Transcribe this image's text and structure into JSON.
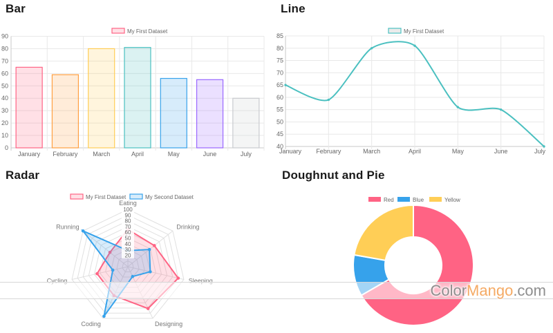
{
  "watermark": {
    "part1": "Color",
    "part2": "Mango",
    "part3": ".com",
    "accent_color": "#f5aa64",
    "text_color": "#8e8e8e"
  },
  "chart_data": [
    {
      "id": "bar",
      "type": "bar",
      "title": "Bar",
      "legend": [
        {
          "label": "My First Dataset",
          "fill": "rgba(255,99,132,0.2)",
          "border": "#ff6384"
        }
      ],
      "legend_position": "top",
      "categories": [
        "January",
        "February",
        "March",
        "April",
        "May",
        "June",
        "July"
      ],
      "values": [
        65,
        59,
        80,
        81,
        56,
        55,
        40
      ],
      "ylim": [
        0,
        90
      ],
      "ytick_step": 10,
      "grid": true,
      "bar_fills": [
        "rgba(255,99,132,0.2)",
        "rgba(255,159,64,0.2)",
        "rgba(255,205,86,0.2)",
        "rgba(75,192,192,0.2)",
        "rgba(54,162,235,0.2)",
        "rgba(153,102,255,0.2)",
        "rgba(201,203,207,0.2)"
      ],
      "bar_borders": [
        "#ff6384",
        "#ff9f40",
        "#ffcd56",
        "#4bc0c0",
        "#36a2eb",
        "#9966ff",
        "#c9cbcf"
      ]
    },
    {
      "id": "line",
      "type": "line",
      "title": "Line",
      "legend": [
        {
          "label": "My First Dataset",
          "fill": "rgba(0,0,0,0.08)",
          "border": "#4bc0c0"
        }
      ],
      "legend_position": "top",
      "categories": [
        "January",
        "February",
        "March",
        "April",
        "May",
        "June",
        "July"
      ],
      "values": [
        65,
        59,
        80,
        81,
        56,
        55,
        40
      ],
      "ylim": [
        40,
        85
      ],
      "ytick_step": 5,
      "grid": true,
      "line_color": "#4bc0c0"
    },
    {
      "id": "radar",
      "type": "radar",
      "title": "Radar",
      "categories": [
        "Eating",
        "Drinking",
        "Sleeping",
        "Designing",
        "Coding",
        "Cycling",
        "Running"
      ],
      "series": [
        {
          "name": "My First Dataset",
          "values": [
            65,
            59,
            90,
            81,
            56,
            55,
            40
          ],
          "border": "#ff6384",
          "fill": "rgba(255,99,132,0.2)"
        },
        {
          "name": "My Second Dataset",
          "values": [
            28,
            48,
            40,
            19,
            96,
            27,
            100
          ],
          "border": "#36a2eb",
          "fill": "rgba(54,162,235,0.2)"
        }
      ],
      "rlim": [
        0,
        100
      ],
      "rtick_step": 10,
      "rtick_labels_visible": [
        20,
        30,
        40,
        50,
        60,
        70,
        80,
        90,
        100
      ],
      "legend_position": "top"
    },
    {
      "id": "doughnut",
      "type": "doughnut",
      "title": "Doughnut and Pie",
      "categories": [
        "Red",
        "Blue",
        "Yellow"
      ],
      "values": [
        300,
        50,
        100
      ],
      "colors": [
        "#ff6384",
        "#36a2eb",
        "#ffce56"
      ],
      "cutout": "50%",
      "legend_position": "top"
    }
  ]
}
